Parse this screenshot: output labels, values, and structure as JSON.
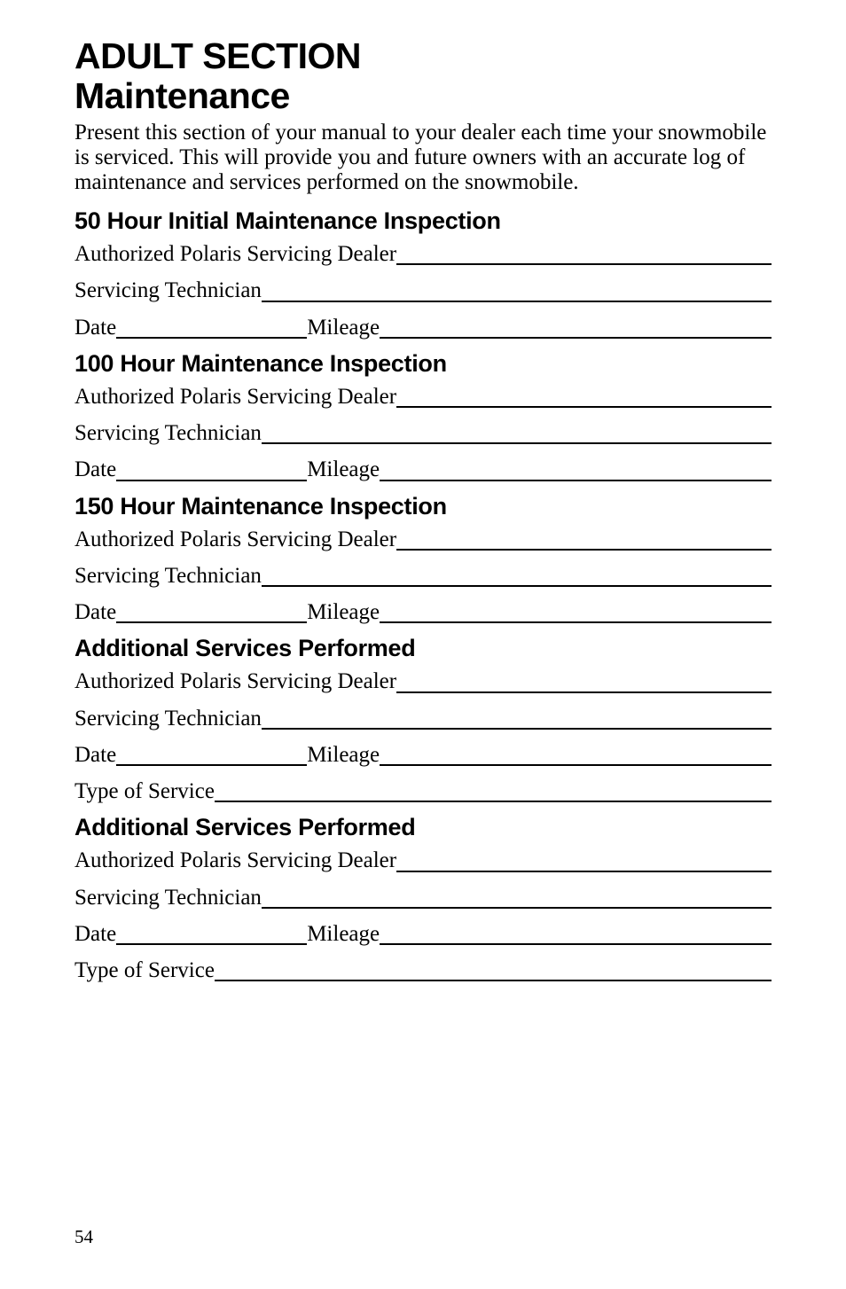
{
  "page_number": "54",
  "title_line1": "ADULT SECTION",
  "title_line2": "Maintenance",
  "intro": "Present this section of your manual to your dealer each time your snowmobile is serviced.  This will provide you and future owners with an accurate log of maintenance and services performed on the snowmobile.",
  "labels": {
    "dealer": "Authorized Polaris Servicing Dealer",
    "technician": "Servicing Technician",
    "date": "Date",
    "mileage": "Mileage",
    "service_type": "Type of Service"
  },
  "sections": [
    {
      "heading": "50 Hour Initial Maintenance Inspection",
      "has_service_type": false
    },
    {
      "heading": "100 Hour Maintenance Inspection",
      "has_service_type": false
    },
    {
      "heading": "150 Hour Maintenance Inspection",
      "has_service_type": false
    },
    {
      "heading": "Additional Services Performed",
      "has_service_type": true
    },
    {
      "heading": "Additional Services Performed",
      "has_service_type": true
    }
  ],
  "colors": {
    "text": "#000000",
    "background": "#ffffff",
    "rule": "#000000"
  }
}
